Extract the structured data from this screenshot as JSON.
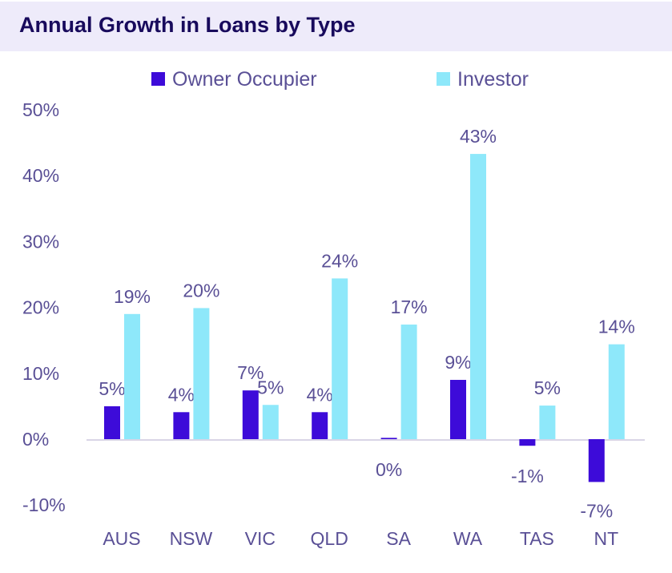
{
  "chart_data": {
    "type": "bar",
    "title": "Annual Growth in Loans by Type",
    "categories": [
      "AUS",
      "NSW",
      "VIC",
      "QLD",
      "SA",
      "WA",
      "TAS",
      "NT"
    ],
    "series": [
      {
        "name": "Owner Occupier",
        "color": "#3d0bd9",
        "values": [
          5.0,
          4.1,
          7.4,
          4.1,
          0.2,
          9.0,
          -1.0,
          -6.5
        ],
        "labels": [
          "5%",
          "4%",
          "7%",
          "4%",
          "0%",
          "9%",
          "-1%",
          "-7%"
        ]
      },
      {
        "name": "Investor",
        "color": "#8ee8fa",
        "values": [
          19.0,
          19.9,
          5.2,
          24.4,
          17.4,
          43.3,
          5.1,
          14.4
        ],
        "labels": [
          "19%",
          "20%",
          "5%",
          "24%",
          "17%",
          "43%",
          "5%",
          "14%"
        ]
      }
    ],
    "yticks": [
      "50%",
      "40%",
      "30%",
      "20%",
      "10%",
      "0%",
      "-10%"
    ],
    "ytick_values": [
      50,
      40,
      30,
      20,
      10,
      0,
      -10
    ],
    "ylim": [
      -10,
      50
    ],
    "legend": "top",
    "grid": false
  }
}
